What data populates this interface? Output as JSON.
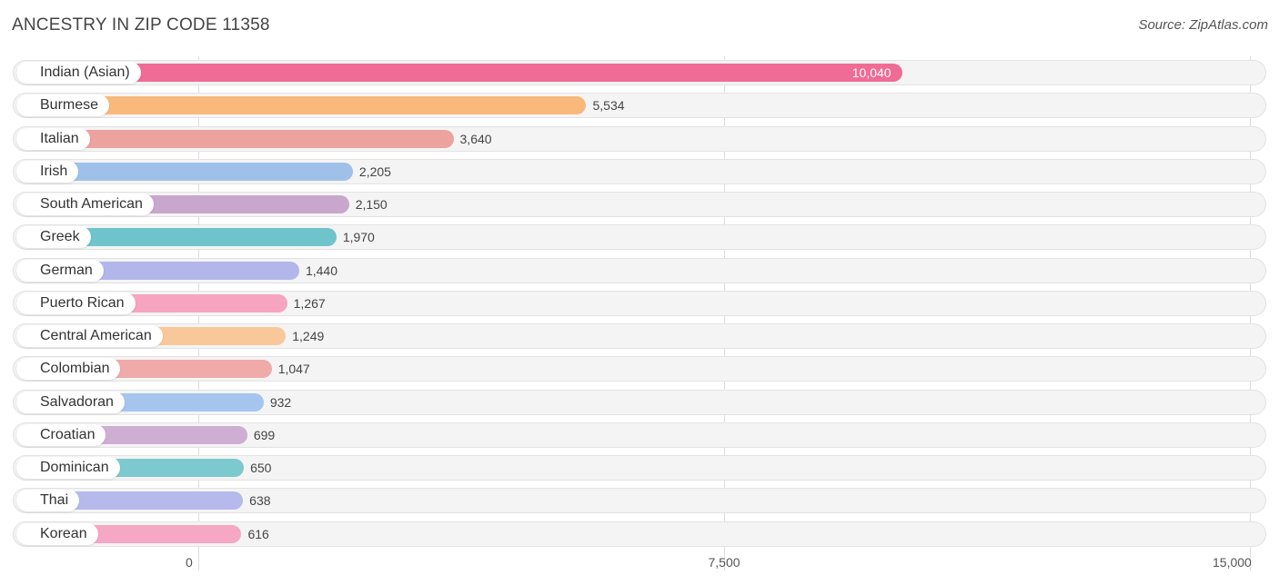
{
  "header": {
    "title": "ANCESTRY IN ZIP CODE 11358",
    "source": "Source: ZipAtlas.com"
  },
  "chart_data": {
    "type": "bar",
    "orientation": "horizontal",
    "title": "ANCESTRY IN ZIP CODE 11358",
    "xlabel": "",
    "ylabel": "",
    "xlim": [
      0,
      15000
    ],
    "ticks": [
      0,
      7500,
      15000
    ],
    "tick_labels": [
      "0",
      "7,500",
      "15,000"
    ],
    "grid": true,
    "categories": [
      "Indian (Asian)",
      "Burmese",
      "Italian",
      "Irish",
      "South American",
      "Greek",
      "German",
      "Puerto Rican",
      "Central American",
      "Colombian",
      "Salvadoran",
      "Croatian",
      "Dominican",
      "Thai",
      "Korean"
    ],
    "values": [
      10040,
      5534,
      3640,
      2205,
      2150,
      1970,
      1440,
      1267,
      1249,
      1047,
      932,
      699,
      650,
      638,
      616
    ],
    "value_labels": [
      "10,040",
      "5,534",
      "3,640",
      "2,205",
      "2,150",
      "1,970",
      "1,440",
      "1,267",
      "1,249",
      "1,047",
      "932",
      "699",
      "650",
      "638",
      "616"
    ],
    "colors": [
      "#f06b96",
      "#f9b97a",
      "#eca29f",
      "#9fc1e9",
      "#c9a7cd",
      "#6fc4cc",
      "#b2b6ea",
      "#f7a4c0",
      "#f9c89a",
      "#f0aaaa",
      "#a6c5ee",
      "#cfaed4",
      "#7cc9cf",
      "#b5b9ec",
      "#f5a7c3"
    ]
  }
}
